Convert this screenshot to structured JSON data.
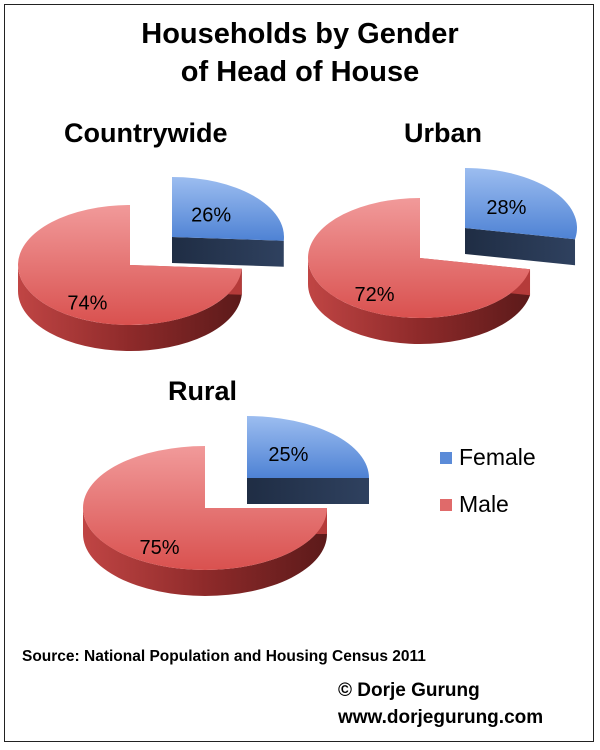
{
  "chart_data": {
    "type": "pie",
    "title_line1": "Households by Gender",
    "title_line2": "of Head of House",
    "legend": {
      "position": "right",
      "entries": [
        "Female",
        "Male"
      ]
    },
    "colors": {
      "Female": "#5b8bd8",
      "Male": "#e06a6a"
    },
    "pies": [
      {
        "title": "Countrywide",
        "slices": [
          {
            "label": "Female",
            "value": 26,
            "display": "26%"
          },
          {
            "label": "Male",
            "value": 74,
            "display": "74%"
          }
        ]
      },
      {
        "title": "Urban",
        "slices": [
          {
            "label": "Female",
            "value": 28,
            "display": "28%"
          },
          {
            "label": "Male",
            "value": 72,
            "display": "72%"
          }
        ]
      },
      {
        "title": "Rural",
        "slices": [
          {
            "label": "Female",
            "value": 25,
            "display": "25%"
          },
          {
            "label": "Male",
            "value": 75,
            "display": "75%"
          }
        ]
      }
    ]
  },
  "source": "Source: National Population and Housing Census 2011",
  "credit": {
    "line1": "© Dorje Gurung",
    "line2": "www.dorjegurung.com"
  }
}
